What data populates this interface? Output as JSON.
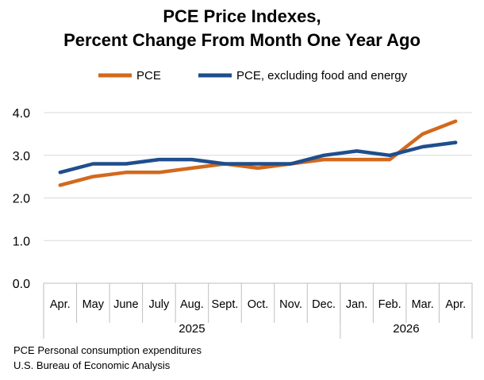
{
  "chart_data": {
    "type": "line",
    "title": [
      "PCE Price Indexes,",
      "Percent Change From Month One Year Ago"
    ],
    "xlabel": "",
    "ylabel": "",
    "categories": [
      "Apr.",
      "May",
      "June",
      "July",
      "Aug.",
      "Sept.",
      "Oct.",
      "Nov.",
      "Dec.",
      "Jan.",
      "Feb.",
      "Mar.",
      "Apr."
    ],
    "category_groups": [
      {
        "label": "2025",
        "count": 9
      },
      {
        "label": "2026",
        "count": 4
      }
    ],
    "series": [
      {
        "name": "PCE",
        "color": "#D2691E",
        "values": [
          2.3,
          2.5,
          2.6,
          2.6,
          2.7,
          2.8,
          2.7,
          2.8,
          2.9,
          2.9,
          2.9,
          3.5,
          3.8
        ]
      },
      {
        "name": "PCE, excluding food and energy",
        "color": "#1F4E8C",
        "values": [
          2.6,
          2.8,
          2.8,
          2.9,
          2.9,
          2.8,
          2.8,
          2.8,
          3.0,
          3.1,
          3.0,
          3.2,
          3.3
        ]
      }
    ],
    "y_ticks": [
      "0.0",
      "1.0",
      "2.0",
      "3.0",
      "4.0"
    ],
    "ylim": [
      0,
      4
    ],
    "grid": true,
    "legend": "top"
  },
  "footnotes": [
    "PCE Personal consumption expenditures",
    "U.S. Bureau of Economic Analysis"
  ]
}
